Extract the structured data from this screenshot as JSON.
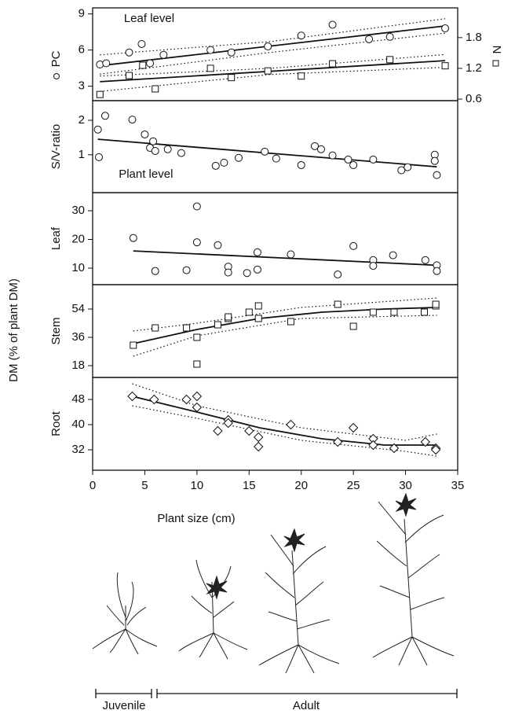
{
  "chart_data": [
    {
      "type": "scatter",
      "ylabel": "PC",
      "y2label": "N",
      "annotation": "Leaf level",
      "xlim": [
        0,
        35
      ],
      "ylim": [
        1.8,
        9.5
      ],
      "yticks": [
        3,
        6,
        9
      ],
      "y2lim": [
        0.57,
        2.38
      ],
      "y2ticks": [
        0.6,
        1.2,
        1.8
      ],
      "series": [
        {
          "name": "PC",
          "marker": "circle",
          "x": [
            0.7,
            1.3,
            3.5,
            4.7,
            5.5,
            6.8,
            11.3,
            13.3,
            16.8,
            20,
            23,
            26.5,
            28.5,
            33.8
          ],
          "values": [
            4.8,
            4.9,
            5.8,
            6.5,
            4.9,
            5.6,
            6.0,
            5.8,
            6.3,
            7.2,
            8.1,
            6.9,
            7.1,
            7.8
          ]
        },
        {
          "name": "N",
          "marker": "square",
          "axis": "y2",
          "x": [
            0.7,
            3.5,
            4.8,
            6,
            11.3,
            13.3,
            16.8,
            20,
            23,
            28.5,
            33.8
          ],
          "values": [
            0.69,
            1.06,
            1.26,
            0.8,
            1.2,
            1.02,
            1.15,
            1.05,
            1.29,
            1.37,
            1.25
          ]
        }
      ],
      "fits": [
        {
          "style": "solid",
          "x": [
            0.7,
            33.8
          ],
          "values": [
            4.7,
            8.0
          ]
        },
        {
          "style": "dotted",
          "x": [
            0.7,
            17,
            33.8
          ],
          "values": [
            5.6,
            6.7,
            8.6
          ]
        },
        {
          "style": "dotted",
          "x": [
            0.7,
            17,
            33.8
          ],
          "values": [
            4.0,
            5.8,
            7.4
          ]
        },
        {
          "style": "solid",
          "axis": "y2",
          "x": [
            0.7,
            33.8
          ],
          "values": [
            0.94,
            1.35
          ]
        },
        {
          "style": "dotted",
          "axis": "y2",
          "x": [
            0.7,
            17,
            33.8
          ],
          "values": [
            1.05,
            1.2,
            1.47
          ]
        },
        {
          "style": "dotted",
          "axis": "y2",
          "x": [
            0.7,
            17,
            33.8
          ],
          "values": [
            0.75,
            1.08,
            1.22
          ]
        }
      ]
    },
    {
      "type": "scatter",
      "ylabel": "S/V-ratio",
      "annotation": "Plant level",
      "xlim": [
        0,
        35
      ],
      "ylim": [
        -0.1,
        2.57
      ],
      "yticks": [
        1,
        2
      ],
      "series": [
        {
          "marker": "circle",
          "x": [
            0.5,
            0.6,
            1.2,
            3.8,
            5,
            5.5,
            5.8,
            6,
            7.2,
            8.5,
            11.8,
            12.6,
            14,
            16.5,
            17.6,
            20,
            21.3,
            21.9,
            23,
            24.5,
            25,
            26.9,
            29.6,
            30.2,
            32.8,
            32.8,
            33
          ],
          "values": [
            1.73,
            0.93,
            2.13,
            2.02,
            1.59,
            1.2,
            1.39,
            1.11,
            1.16,
            1.05,
            0.68,
            0.77,
            0.91,
            1.09,
            0.89,
            0.7,
            1.25,
            1.16,
            0.98,
            0.86,
            0.7,
            0.86,
            0.55,
            0.64,
            1.0,
            0.82,
            0.41
          ]
        }
      ],
      "fits": [
        {
          "style": "solid",
          "x": [
            0.5,
            33
          ],
          "values": [
            1.45,
            0.65
          ]
        }
      ]
    },
    {
      "type": "scatter",
      "ylabel": "Leaf",
      "xlim": [
        0,
        35
      ],
      "ylim": [
        4.25,
        36.3
      ],
      "yticks": [
        10,
        20,
        30
      ],
      "series": [
        {
          "marker": "circle",
          "x": [
            3.9,
            6,
            9,
            10,
            10,
            12,
            13,
            13,
            14.8,
            15.8,
            15.8,
            19,
            23.5,
            25,
            26.9,
            26.9,
            28.8,
            31.9,
            33,
            33
          ],
          "values": [
            20.5,
            9,
            9.3,
            31.5,
            19,
            18,
            10.5,
            8.5,
            8.3,
            9.5,
            15.5,
            14.8,
            7.8,
            17.7,
            12.8,
            10.8,
            14.5,
            12.8,
            11,
            9
          ]
        }
      ],
      "fits": [
        {
          "style": "solid",
          "x": [
            3.9,
            33
          ],
          "values": [
            16,
            11
          ]
        }
      ]
    },
    {
      "type": "scatter",
      "ylabel": "Stem",
      "xlim": [
        0,
        35
      ],
      "ylim": [
        10.5,
        69.5
      ],
      "yticks": [
        18,
        36,
        54
      ],
      "series": [
        {
          "marker": "square",
          "x": [
            3.9,
            6,
            9,
            10,
            10,
            12,
            13,
            13,
            15,
            15.9,
            15.9,
            19,
            23.5,
            25,
            26.9,
            28.9,
            31.8,
            32.9,
            32.9
          ],
          "values": [
            31,
            42,
            42,
            36,
            19,
            44,
            48,
            49,
            52,
            56,
            48,
            46,
            57,
            43,
            52,
            52,
            52,
            56,
            57
          ]
        }
      ],
      "fits": [
        {
          "style": "solid",
          "x": [
            3.9,
            10,
            16,
            22,
            28,
            33
          ],
          "values": [
            32,
            41,
            48,
            52,
            54,
            55
          ]
        },
        {
          "style": "dotted",
          "x": [
            3.9,
            10,
            20,
            33
          ],
          "values": [
            40,
            45,
            55,
            61
          ]
        },
        {
          "style": "dotted",
          "x": [
            3.9,
            10,
            20,
            33
          ],
          "values": [
            24,
            37,
            48,
            50
          ]
        }
      ]
    },
    {
      "type": "scatter",
      "ylabel": "Root",
      "xlabel": "Plant size (cm)",
      "xlim": [
        0,
        35
      ],
      "xticks": [
        0,
        5,
        10,
        15,
        20,
        25,
        30,
        35
      ],
      "ylim": [
        25.5,
        55
      ],
      "yticks": [
        32,
        40,
        48
      ],
      "series": [
        {
          "marker": "diamond",
          "x": [
            3.8,
            5.9,
            9,
            10,
            10,
            12,
            13,
            13,
            15,
            15.9,
            15.9,
            19,
            23.5,
            25,
            26.9,
            26.9,
            28.9,
            31.9,
            32.9,
            32.9
          ],
          "values": [
            49,
            48,
            48,
            49,
            45.5,
            38,
            41.5,
            40.5,
            38,
            36,
            33,
            40,
            34.5,
            39,
            35.5,
            33.5,
            32.5,
            34.5,
            32.5,
            32
          ]
        }
      ],
      "fits": [
        {
          "style": "solid",
          "x": [
            3.8,
            10,
            16,
            22,
            28,
            33
          ],
          "values": [
            49,
            44,
            39,
            35.5,
            33.5,
            33.5
          ]
        },
        {
          "style": "dotted",
          "x": [
            3.8,
            10,
            20,
            30,
            33
          ],
          "values": [
            53,
            46,
            39,
            35,
            37
          ]
        },
        {
          "style": "dotted",
          "x": [
            3.8,
            10,
            20,
            30,
            33
          ],
          "values": [
            46,
            42,
            35,
            31.5,
            30
          ]
        }
      ]
    }
  ],
  "figure": {
    "ylabel": "DM (% of plant DM)",
    "stages": [
      "Juvenile",
      "Adult"
    ]
  }
}
